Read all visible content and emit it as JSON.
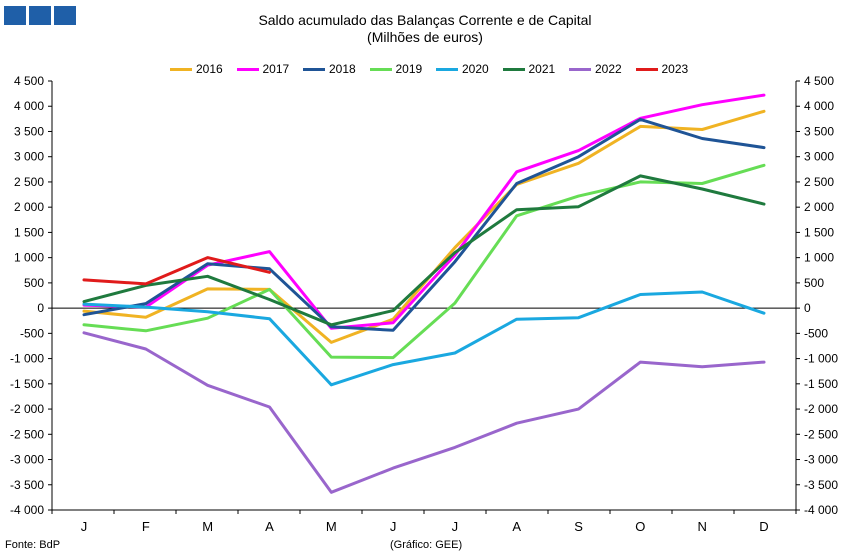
{
  "header": {
    "title_line1": "Saldo acumulado das Balanças Corrente e de Capital",
    "title_line2": "(Milhões de euros)"
  },
  "footer": {
    "source": "Fonte: BdP",
    "credit": "(Gráfico: GEE)"
  },
  "colors": {
    "logo": "#1f5fa8",
    "axis": "#000000",
    "zero_line": "#000000"
  },
  "chart_data": {
    "type": "line",
    "title": "Saldo acumulado das Balanças Corrente e de Capital",
    "subtitle": "(Milhões de euros)",
    "xlabel": "",
    "ylabel": "",
    "categories": [
      "J",
      "F",
      "M",
      "A",
      "M",
      "J",
      "J",
      "A",
      "S",
      "O",
      "N",
      "D"
    ],
    "ylim": [
      -4000,
      4500
    ],
    "ytick_step": 500,
    "ytick_labels": [
      "-4 000",
      "-3 500",
      "-3 000",
      "-2 500",
      "-2 000",
      "-1 500",
      "-1 000",
      "-500",
      "0",
      "500",
      "1 000",
      "1 500",
      "2 000",
      "2 500",
      "3 000",
      "3 500",
      "4 000",
      "4 500"
    ],
    "secondary_y_axis": true,
    "grid": false,
    "legend_position": "top",
    "series": [
      {
        "name": "2016",
        "color": "#f0b323",
        "values": [
          -60,
          -180,
          380,
          370,
          -680,
          -220,
          1200,
          2450,
          2870,
          3600,
          3540,
          3900
        ]
      },
      {
        "name": "2017",
        "color": "#ff00ff",
        "values": [
          60,
          20,
          850,
          1120,
          -400,
          -290,
          1050,
          2700,
          3120,
          3760,
          4030,
          4220
        ]
      },
      {
        "name": "2018",
        "color": "#1f5496",
        "values": [
          -130,
          90,
          880,
          780,
          -370,
          -440,
          920,
          2470,
          3000,
          3740,
          3360,
          3180
        ]
      },
      {
        "name": "2019",
        "color": "#66dd55",
        "values": [
          -330,
          -450,
          -200,
          370,
          -970,
          -980,
          100,
          1830,
          2220,
          2500,
          2470,
          2830
        ]
      },
      {
        "name": "2020",
        "color": "#1aa8e0",
        "values": [
          80,
          20,
          -70,
          -210,
          -1520,
          -1120,
          -890,
          -220,
          -190,
          270,
          320,
          -100
        ]
      },
      {
        "name": "2021",
        "color": "#1f7a3e",
        "values": [
          130,
          450,
          630,
          170,
          -330,
          -50,
          1100,
          1950,
          2010,
          2620,
          2360,
          2060
        ]
      },
      {
        "name": "2022",
        "color": "#9966cc",
        "values": [
          -490,
          -810,
          -1530,
          -1960,
          -3650,
          -3170,
          -2760,
          -2280,
          -2000,
          -1070,
          -1160,
          -1070
        ]
      },
      {
        "name": "2023",
        "color": "#e01b1b",
        "values": [
          560,
          480,
          1000,
          710,
          null,
          null,
          null,
          null,
          null,
          null,
          null,
          null
        ]
      }
    ]
  }
}
